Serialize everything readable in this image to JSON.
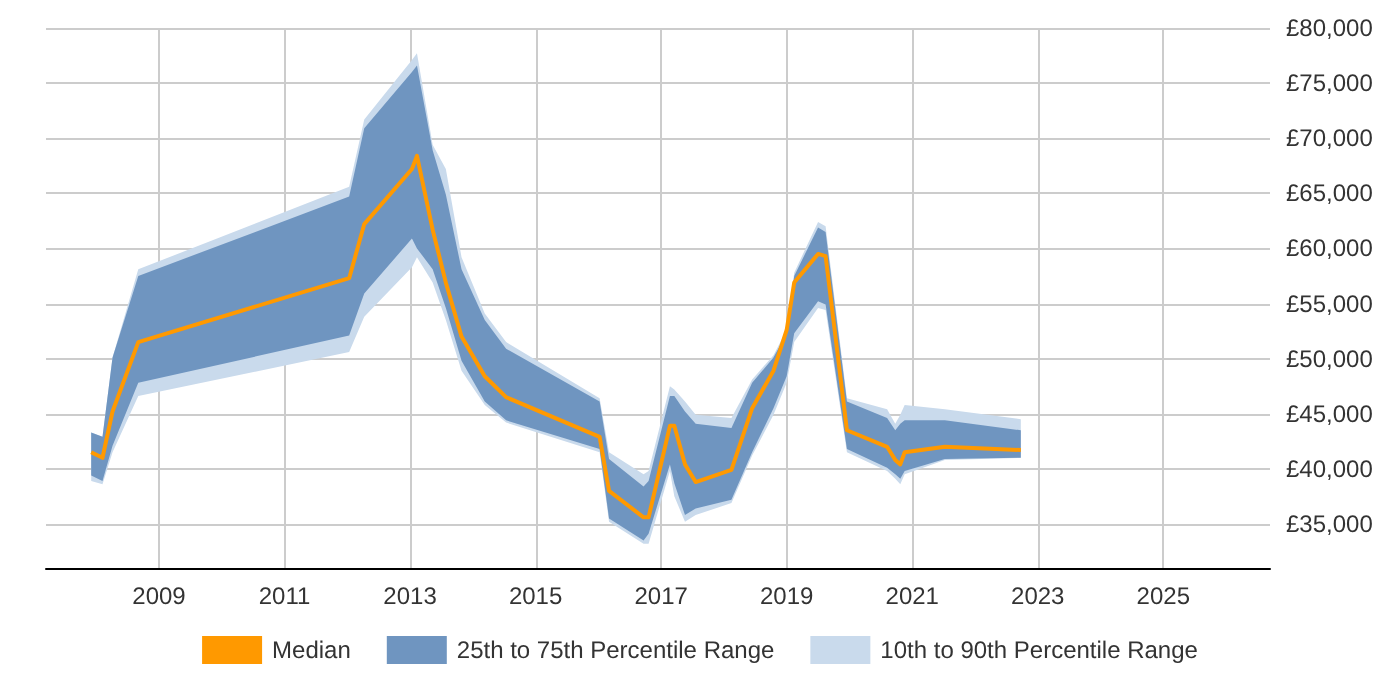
{
  "chart_data": {
    "type": "line",
    "x": [
      2007.92,
      2008.1,
      2008.26,
      2008.67,
      2012.03,
      2012.27,
      2013.03,
      2013.11,
      2013.36,
      2013.57,
      2013.82,
      2014.19,
      2014.53,
      2016.02,
      2016.17,
      2016.72,
      2016.8,
      2017.14,
      2017.21,
      2017.38,
      2017.55,
      2018.12,
      2018.45,
      2018.79,
      2019.0,
      2019.12,
      2019.5,
      2019.62,
      2019.96,
      2020.6,
      2020.73,
      2020.81,
      2020.88,
      2021.52,
      2022.73
    ],
    "series": [
      {
        "name": "Median",
        "type": "line",
        "color": "#ff9900",
        "values": [
          41500,
          41000,
          45200,
          51500,
          57300,
          62200,
          67200,
          68400,
          61700,
          56900,
          52000,
          48400,
          46500,
          42900,
          38000,
          35600,
          35600,
          43900,
          43900,
          40400,
          38800,
          39900,
          45500,
          48900,
          52600,
          56900,
          59500,
          59300,
          43500,
          42000,
          40800,
          40400,
          41500,
          42000,
          41700
        ]
      },
      {
        "name": "25th to 75th Percentile Range",
        "type": "line",
        "color": "#6f95c0",
        "values": [
          null,
          null,
          null,
          null,
          null,
          null,
          null,
          null,
          null,
          null,
          null,
          null,
          null,
          null,
          null,
          null,
          null,
          null,
          null,
          null,
          null,
          null,
          null,
          null,
          null,
          null,
          null,
          null,
          null,
          null,
          null,
          null,
          null,
          null,
          null
        ],
        "lower": [
          39400,
          38900,
          42100,
          47800,
          52100,
          55900,
          60900,
          60000,
          58100,
          54600,
          49800,
          46100,
          44400,
          41800,
          35500,
          33500,
          34100,
          40400,
          38700,
          35800,
          36400,
          37200,
          41500,
          45500,
          48400,
          52300,
          55200,
          54900,
          41800,
          40100,
          39500,
          39100,
          39800,
          40900,
          41000
        ],
        "upper": [
          43300,
          42900,
          50100,
          57500,
          64700,
          70900,
          76000,
          76600,
          68900,
          64900,
          58100,
          53500,
          50900,
          46100,
          40900,
          38400,
          38900,
          46600,
          46600,
          45200,
          44100,
          43700,
          47800,
          50100,
          52300,
          57500,
          61900,
          61500,
          46100,
          44600,
          43500,
          44100,
          44400,
          44400,
          43500
        ]
      },
      {
        "name": "10th to 90th Percentile Range",
        "type": "line",
        "color": "#c9daec",
        "values": [
          null,
          null,
          null,
          null,
          null,
          null,
          null,
          null,
          null,
          null,
          null,
          null,
          null,
          null,
          null,
          null,
          null,
          null,
          null,
          null,
          null,
          null,
          null,
          null,
          null,
          null,
          null,
          null,
          null,
          null,
          null,
          null,
          null,
          null,
          null
        ],
        "lower": [
          38900,
          38600,
          41500,
          46600,
          50600,
          53800,
          58300,
          59200,
          56900,
          53500,
          48900,
          45800,
          44200,
          41500,
          35200,
          33200,
          33200,
          39800,
          37500,
          35200,
          35800,
          36900,
          41200,
          44900,
          47800,
          51500,
          54600,
          54400,
          41500,
          39800,
          39100,
          38600,
          39500,
          40800,
          41000
        ],
        "upper": [
          43300,
          42900,
          50100,
          58100,
          65600,
          71700,
          77100,
          77700,
          69400,
          67200,
          59200,
          54100,
          51500,
          46400,
          41500,
          39500,
          39800,
          47500,
          47200,
          46100,
          44900,
          44600,
          48100,
          50300,
          52600,
          57800,
          62400,
          62000,
          46400,
          45400,
          44100,
          44900,
          45800,
          45400,
          44500
        ]
      }
    ],
    "xlim": [
      2007.2,
      2026.7
    ],
    "xticks": [
      2009,
      2011,
      2013,
      2015,
      2017,
      2019,
      2021,
      2023,
      2025
    ],
    "ylim": [
      31000,
      80000
    ],
    "yticks": [
      {
        "value": 35000,
        "label": "£35,000"
      },
      {
        "value": 40000,
        "label": "£40,000"
      },
      {
        "value": 45000,
        "label": "£45,000"
      },
      {
        "value": 50000,
        "label": "£50,000"
      },
      {
        "value": 55000,
        "label": "£55,000"
      },
      {
        "value": 60000,
        "label": "£60,000"
      },
      {
        "value": 65000,
        "label": "£65,000"
      },
      {
        "value": 70000,
        "label": "£70,000"
      },
      {
        "value": 75000,
        "label": "£75,000"
      },
      {
        "value": 80000,
        "label": "£80,000"
      }
    ],
    "grid": true,
    "legend": "bottom",
    "marker": "none"
  }
}
